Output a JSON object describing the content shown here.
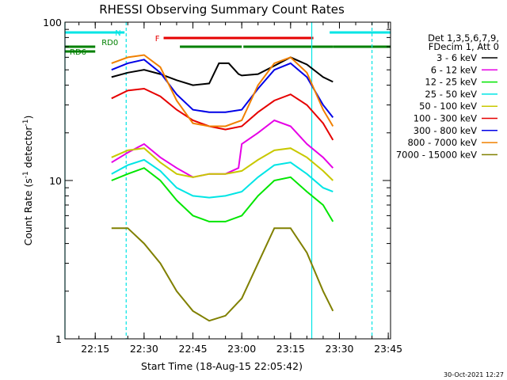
{
  "chart_data": {
    "type": "line",
    "title": "RHESSI Observing Summary Count Rates",
    "xlabel": "Start Time (18-Aug-15 22:05:42)",
    "ylabel_main": "Count Rate (s",
    "ylabel_sup": "-1",
    "ylabel_mid": " detector",
    "ylabel_end": ")",
    "yscale": "log",
    "ylim": [
      1,
      100
    ],
    "xlim": [
      "22:05:42",
      "23:45:42"
    ],
    "x_ticks": [
      "22:15",
      "22:30",
      "22:45",
      "23:00",
      "23:15",
      "23:30",
      "23:45"
    ],
    "y_ticks": [
      "1",
      "10",
      "100"
    ],
    "legend_header": [
      "Det 1,3,5,6,7,9,",
      "FDecim 1, Att 0"
    ],
    "legend_position": "right",
    "timestamp": "30-Oct-2021 12:27",
    "flags": [
      {
        "label": "N",
        "color": "#00e5e5",
        "segments": [
          [
            "22:05:42",
            "22:24:00"
          ],
          [
            "23:27:00",
            "23:45:42"
          ]
        ]
      },
      {
        "label": "F",
        "color": "#e60000",
        "segments": [
          [
            "22:36:00",
            "23:22:00"
          ]
        ]
      },
      {
        "label": "RD0",
        "color": "#008000",
        "segments": [
          [
            "22:05:42",
            "22:15:00"
          ],
          [
            "22:41:00",
            "23:00:00"
          ],
          [
            "23:00:30",
            "23:28:00"
          ],
          [
            "23:28:00",
            "23:45:42"
          ]
        ]
      },
      {
        "label": "RD6",
        "color": "#008000",
        "segments": [
          [
            "22:05:42",
            "22:15:00"
          ]
        ]
      }
    ],
    "vlines": [
      {
        "time": "22:05:42",
        "color": "#00e5e5",
        "style": "solid"
      },
      {
        "time": "22:24:30",
        "color": "#00e5e5",
        "style": "dashed"
      },
      {
        "time": "23:21:30",
        "color": "#00e5e5",
        "style": "solid"
      },
      {
        "time": "23:40:00",
        "color": "#00e5e5",
        "style": "dashed"
      }
    ],
    "series": [
      {
        "name": "3 - 6 keV",
        "color": "#000000",
        "x": [
          "22:20",
          "22:25",
          "22:30",
          "22:35",
          "22:40",
          "22:45",
          "22:50",
          "22:53",
          "22:56",
          "22:59",
          "23:00",
          "23:05",
          "23:10",
          "23:15",
          "23:20",
          "23:25",
          "23:28"
        ],
        "y": [
          45,
          48,
          50,
          47,
          43,
          40,
          41,
          55,
          55,
          47,
          46,
          47,
          53,
          60,
          54,
          45,
          42
        ]
      },
      {
        "name": "6 - 12 keV",
        "color": "#e600e6",
        "x": [
          "22:20",
          "22:25",
          "22:30",
          "22:35",
          "22:40",
          "22:45",
          "22:50",
          "22:55",
          "22:59",
          "23:00",
          "23:05",
          "23:10",
          "23:15",
          "23:20",
          "23:25",
          "23:28"
        ],
        "y": [
          13,
          15,
          17,
          14,
          12,
          10.5,
          11,
          11,
          12,
          17,
          20,
          24,
          22,
          17,
          14,
          12
        ]
      },
      {
        "name": "12 - 25 keV",
        "color": "#00e600",
        "x": [
          "22:20",
          "22:25",
          "22:30",
          "22:35",
          "22:40",
          "22:45",
          "22:50",
          "22:55",
          "23:00",
          "23:05",
          "23:10",
          "23:15",
          "23:20",
          "23:25",
          "23:28"
        ],
        "y": [
          10,
          11,
          12,
          10,
          7.5,
          6,
          5.5,
          5.5,
          6,
          8,
          10,
          10.5,
          8.5,
          7,
          5.5
        ]
      },
      {
        "name": "25 - 50 keV",
        "color": "#00e5e5",
        "x": [
          "22:20",
          "22:25",
          "22:30",
          "22:35",
          "22:40",
          "22:45",
          "22:50",
          "22:55",
          "23:00",
          "23:05",
          "23:10",
          "23:15",
          "23:20",
          "23:25",
          "23:28"
        ],
        "y": [
          11,
          12.5,
          13.5,
          11.5,
          9,
          8,
          7.8,
          8,
          8.5,
          10.5,
          12.5,
          13,
          11,
          9,
          8.5
        ]
      },
      {
        "name": "50 - 100 keV",
        "color": "#c8c800",
        "x": [
          "22:20",
          "22:25",
          "22:30",
          "22:35",
          "22:40",
          "22:45",
          "22:50",
          "22:55",
          "23:00",
          "23:05",
          "23:10",
          "23:15",
          "23:20",
          "23:25",
          "23:28"
        ],
        "y": [
          14,
          15.5,
          16,
          13,
          11,
          10.5,
          11,
          11,
          11.5,
          13.5,
          15.5,
          16,
          14,
          11.5,
          10
        ]
      },
      {
        "name": "100 - 300 keV",
        "color": "#e60000",
        "x": [
          "22:20",
          "22:25",
          "22:30",
          "22:35",
          "22:40",
          "22:45",
          "22:50",
          "22:55",
          "23:00",
          "23:05",
          "23:10",
          "23:15",
          "23:20",
          "23:25",
          "23:28"
        ],
        "y": [
          33,
          37,
          38,
          34,
          28,
          24,
          22,
          21,
          22,
          27,
          32,
          35,
          30,
          23,
          18
        ]
      },
      {
        "name": "300 - 800 keV",
        "color": "#0000e6",
        "x": [
          "22:20",
          "22:25",
          "22:30",
          "22:35",
          "22:40",
          "22:45",
          "22:50",
          "22:55",
          "23:00",
          "23:05",
          "23:10",
          "23:15",
          "23:20",
          "23:25",
          "23:28"
        ],
        "y": [
          50,
          55,
          58,
          48,
          35,
          28,
          27,
          27,
          28,
          38,
          50,
          55,
          45,
          30,
          25
        ]
      },
      {
        "name": "800 - 7000 keV",
        "color": "#f08000",
        "x": [
          "22:20",
          "22:25",
          "22:30",
          "22:35",
          "22:40",
          "22:45",
          "22:50",
          "22:55",
          "23:00",
          "23:05",
          "23:10",
          "23:15",
          "23:20",
          "23:25",
          "23:28"
        ],
        "y": [
          55,
          60,
          62,
          52,
          32,
          23,
          22,
          22,
          24,
          40,
          55,
          60,
          48,
          28,
          22
        ]
      },
      {
        "name": "7000 - 15000 keV",
        "color": "#808000",
        "x": [
          "22:20",
          "22:25",
          "22:30",
          "22:35",
          "22:40",
          "22:45",
          "22:50",
          "22:55",
          "23:00",
          "23:05",
          "23:10",
          "23:15",
          "23:20",
          "23:25",
          "23:28"
        ],
        "y": [
          5,
          5,
          4,
          3,
          2,
          1.5,
          1.3,
          1.4,
          1.8,
          3,
          5,
          5,
          3.5,
          2,
          1.5
        ]
      }
    ]
  }
}
